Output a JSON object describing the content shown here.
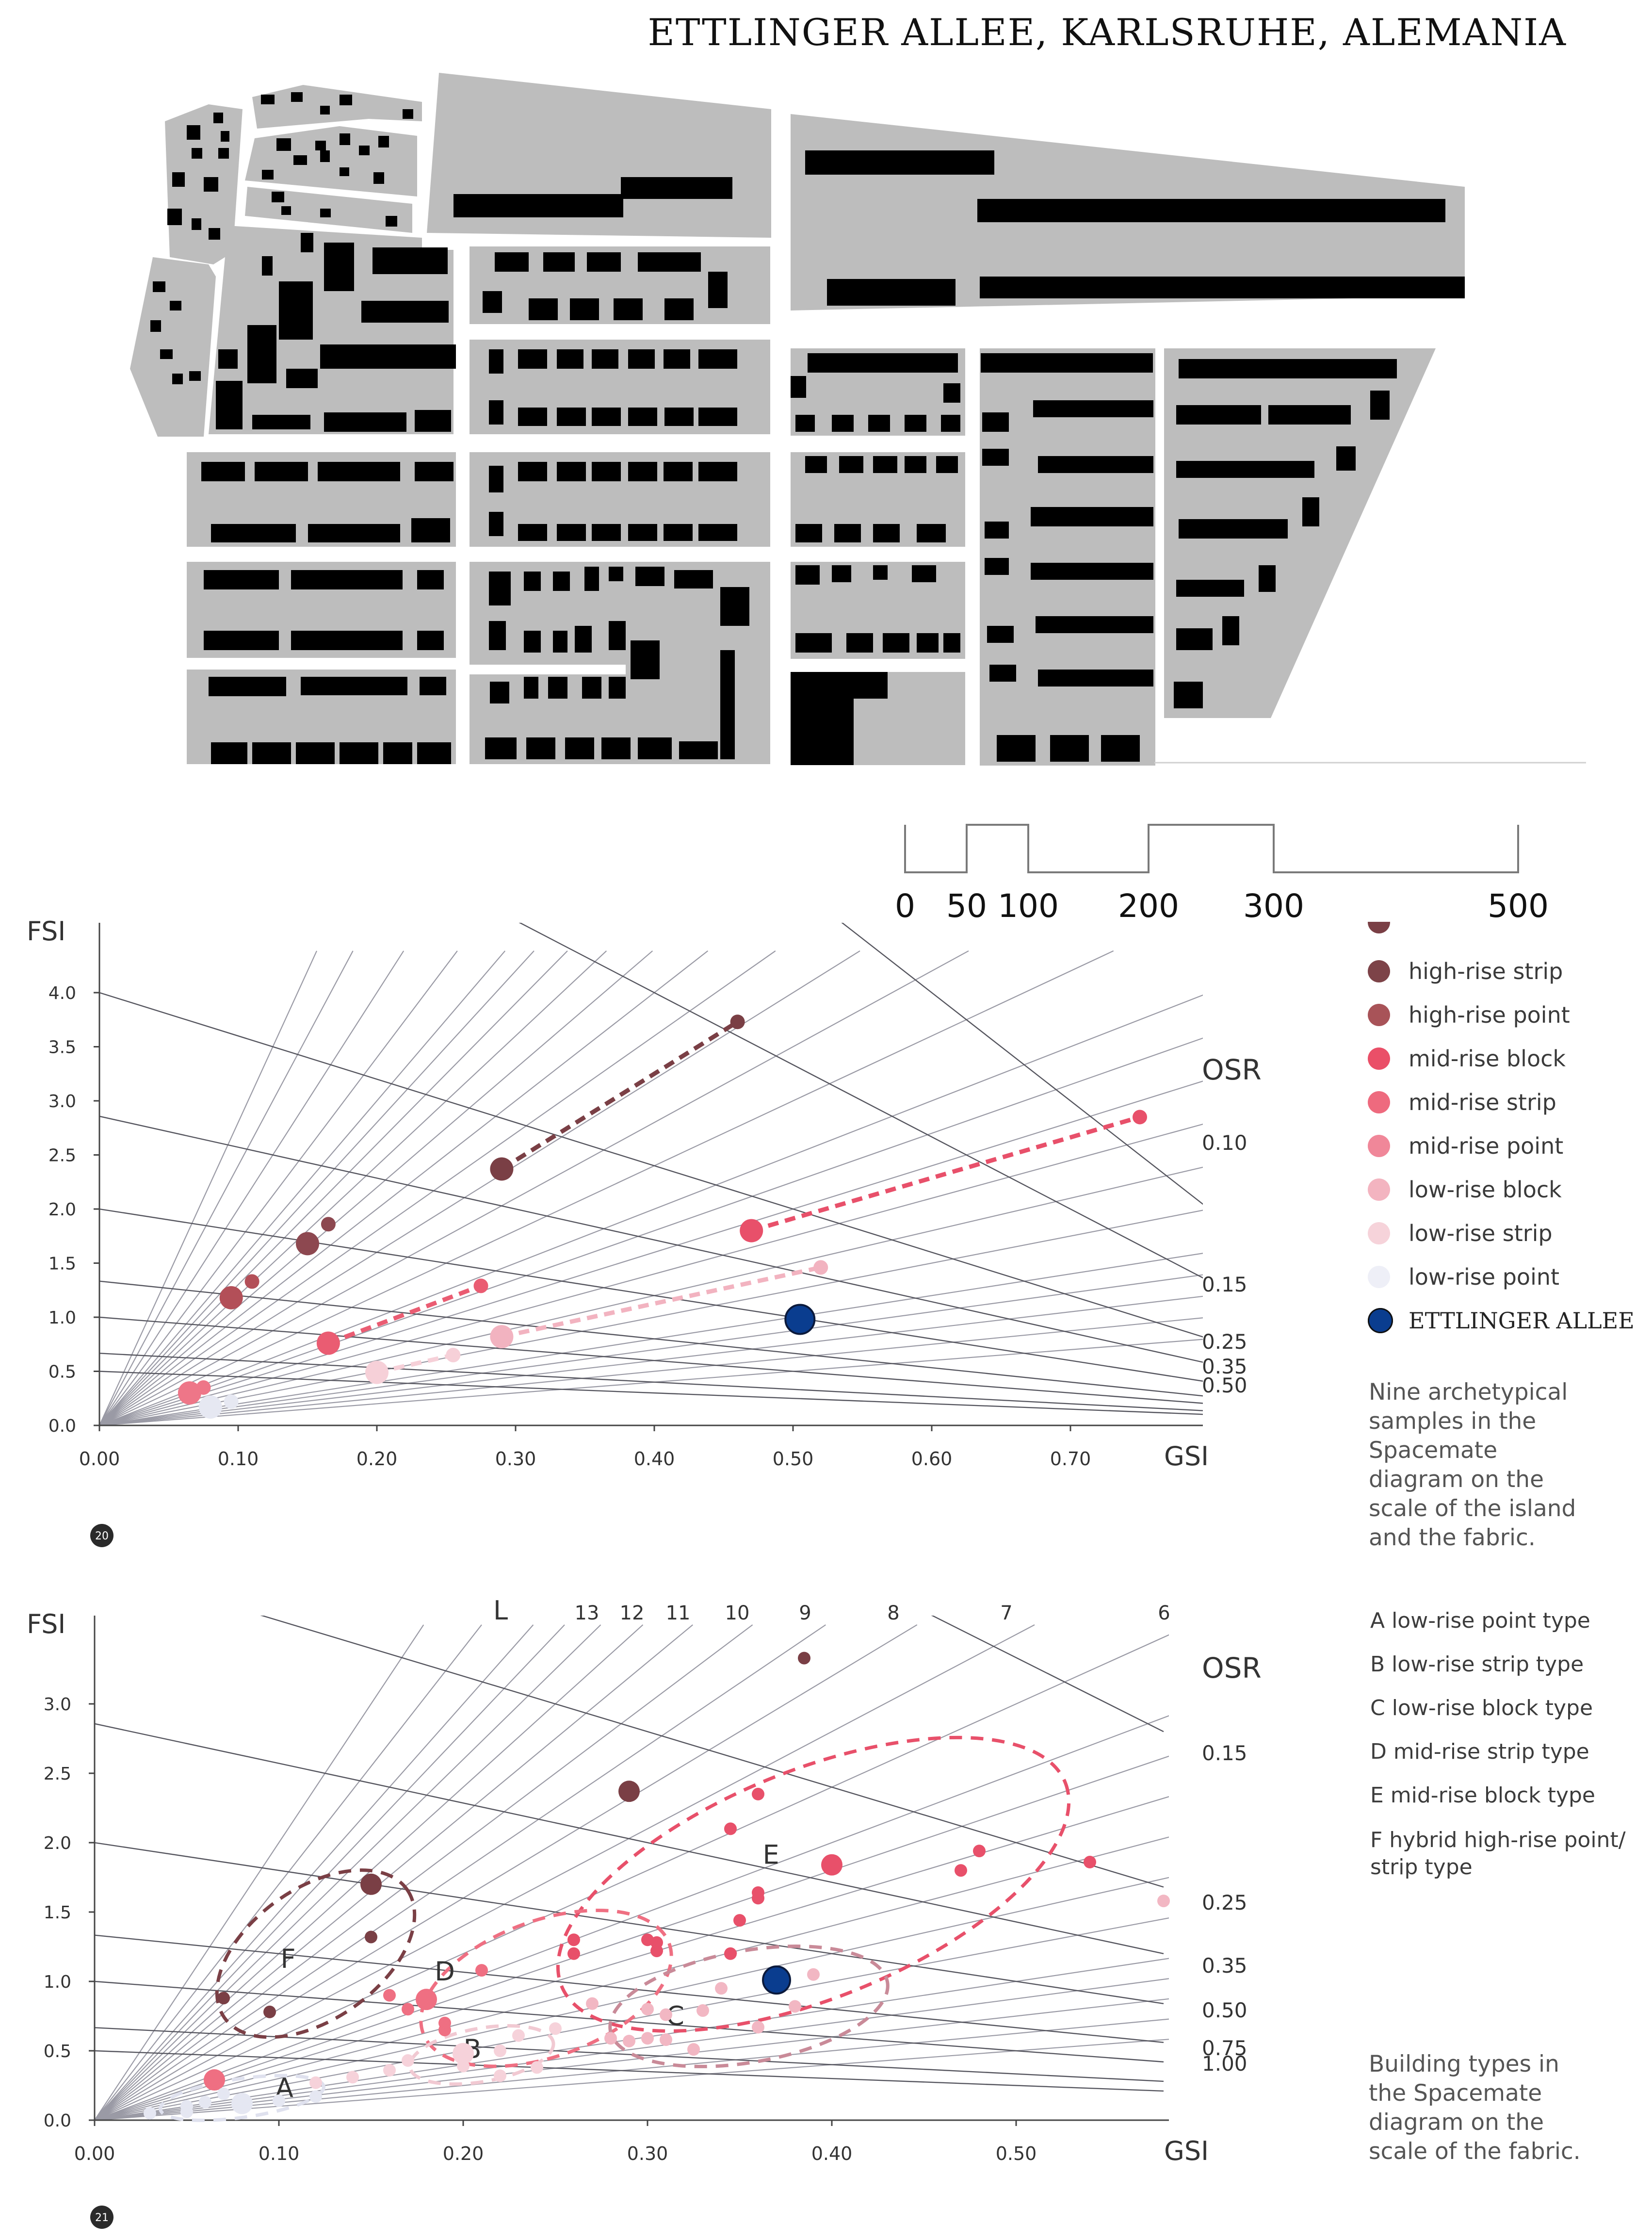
{
  "page": {
    "title": "ETTLINGER ALLEE, KARLSRUHE, ALEMANIA",
    "colors": {
      "block": "#bdbdbd",
      "building": "#000000",
      "highlight": "#0a3d8f",
      "dark": "#7a3f45",
      "mid": "#e85a70",
      "low": "#f2bfc8",
      "lowest": "#eceef6"
    }
  },
  "scale_bar": {
    "labels": [
      "0",
      "50",
      "100",
      "200",
      "300",
      "500"
    ]
  },
  "legend": {
    "items": [
      {
        "label": "high-rise strip",
        "color": "#7d4348"
      },
      {
        "label": "high-rise point",
        "color": "#a85358"
      },
      {
        "label": "mid-rise block",
        "color": "#ea4f68"
      },
      {
        "label": "mid-rise strip",
        "color": "#ee6a7e"
      },
      {
        "label": "mid-rise point",
        "color": "#f08799"
      },
      {
        "label": "low-rise block",
        "color": "#f3b4c0"
      },
      {
        "label": "low-rise strip",
        "color": "#f6d3da"
      },
      {
        "label": "low-rise point",
        "color": "#eeeff7"
      },
      {
        "label": "ETTLINGER ALLEE",
        "color": "#0a3d8f"
      }
    ],
    "caption": "Nine archetypical samples in the Spacemate diagram on the scale of the island and the fabric."
  },
  "types_legend": {
    "items": [
      "A  low-rise point type",
      "B  low-rise strip type",
      "C  low-rise block type",
      "D  mid-rise strip type",
      "E  mid-rise block type",
      "F  hybrid high-rise point/strip type"
    ],
    "caption": "Building types in the Spacemate diagram on the scale of the fabric."
  },
  "chart_data": [
    {
      "type": "scatter",
      "title": "",
      "xlabel": "GSI",
      "ylabel": "FSI",
      "xlim": [
        0,
        0.8
      ],
      "ylim": [
        0,
        4.3
      ],
      "xticks": [
        "0.00",
        "0.10",
        "0.20",
        "0.30",
        "0.40",
        "0.50",
        "0.60",
        "0.70"
      ],
      "yticks": [
        "0.0",
        "0.5",
        "1.0",
        "1.5",
        "2.0",
        "2.5",
        "3.0",
        "3.5",
        "4.0"
      ],
      "osr_label": "OSR",
      "osr_values": [
        "0.10",
        "0.15",
        "0.25",
        "0.35",
        "0.50"
      ],
      "badge": "20",
      "series": [
        {
          "points": [
            [
              0.29,
              2.37
            ],
            [
              0.46,
              3.73
            ]
          ],
          "sizes": [
            1,
            0
          ],
          "color": "#7a3f45",
          "dashed": true
        },
        {
          "points": [
            [
              0.15,
              1.68
            ],
            [
              0.165,
              1.86
            ]
          ],
          "sizes": [
            1,
            0
          ],
          "color": "#8d4850"
        },
        {
          "points": [
            [
              0.095,
              1.18
            ],
            [
              0.11,
              1.33
            ]
          ],
          "sizes": [
            1,
            0
          ],
          "color": "#b34f58"
        },
        {
          "points": [
            [
              0.47,
              1.8
            ],
            [
              0.75,
              2.85
            ]
          ],
          "sizes": [
            1,
            0
          ],
          "color": "#e8506a",
          "dashed": true
        },
        {
          "points": [
            [
              0.165,
              0.76
            ],
            [
              0.275,
              1.29
            ]
          ],
          "sizes": [
            1,
            0
          ],
          "color": "#ea5c72",
          "dashed": true
        },
        {
          "points": [
            [
              0.065,
              0.3
            ],
            [
              0.075,
              0.35
            ]
          ],
          "sizes": [
            1,
            0
          ],
          "color": "#ee7688"
        },
        {
          "points": [
            [
              0.29,
              0.82
            ],
            [
              0.52,
              1.46
            ]
          ],
          "sizes": [
            1,
            0
          ],
          "color": "#f2b3c0",
          "dashed": true
        },
        {
          "points": [
            [
              0.2,
              0.49
            ],
            [
              0.255,
              0.65
            ]
          ],
          "sizes": [
            1,
            0
          ],
          "color": "#f6d0d8",
          "dashed": true
        },
        {
          "points": [
            [
              0.08,
              0.17
            ],
            [
              0.095,
              0.22
            ]
          ],
          "sizes": [
            1,
            0
          ],
          "color": "#e6e8f2"
        }
      ],
      "highlight": {
        "name": "ETTLINGER ALLEE",
        "x": 0.505,
        "y": 0.98,
        "color": "#0a3d8f"
      }
    },
    {
      "type": "scatter",
      "title": "",
      "xlabel": "GSI",
      "ylabel": "FSI",
      "xlim": [
        0,
        0.58
      ],
      "ylim": [
        0,
        3.5
      ],
      "xticks": [
        "0.00",
        "0.10",
        "0.20",
        "0.30",
        "0.40",
        "0.50"
      ],
      "yticks": [
        "0.0",
        "0.5",
        "1.0",
        "1.5",
        "2.0",
        "2.5",
        "3.0"
      ],
      "osr_label": "OSR",
      "osr_values": [
        "0.15",
        "0.25",
        "0.35",
        "0.50",
        "0.75",
        "1.00"
      ],
      "floor_label": "L",
      "floor_values": [
        "13",
        "12",
        "11",
        "10",
        "9",
        "8",
        "7",
        "6"
      ],
      "badge": "21",
      "clusters": [
        {
          "label": "A",
          "label_x": 0.103,
          "label_y": 0.23
        },
        {
          "label": "B",
          "label_x": 0.205,
          "label_y": 0.51
        },
        {
          "label": "C",
          "label_x": 0.315,
          "label_y": 0.75
        },
        {
          "label": "D",
          "label_x": 0.19,
          "label_y": 1.07
        },
        {
          "label": "E",
          "label_x": 0.367,
          "label_y": 1.91
        },
        {
          "label": "F",
          "label_x": 0.105,
          "label_y": 1.16
        }
      ],
      "series": [
        {
          "points": [
            [
              0.385,
              3.33
            ],
            [
              0.29,
              2.37
            ],
            [
              0.15,
              1.7
            ],
            [
              0.15,
              1.32
            ],
            [
              0.07,
              0.88
            ],
            [
              0.095,
              0.78
            ]
          ],
          "sizes": [
            0,
            1,
            1,
            0,
            0,
            0
          ],
          "color": "#7a3f45"
        },
        {
          "points": [
            [
              0.345,
              2.1
            ],
            [
              0.36,
              2.35
            ],
            [
              0.4,
              1.84
            ],
            [
              0.35,
              1.44
            ],
            [
              0.36,
              1.64
            ],
            [
              0.36,
              1.6
            ],
            [
              0.345,
              1.2
            ],
            [
              0.3,
              1.3
            ],
            [
              0.305,
              1.28
            ],
            [
              0.305,
              1.22
            ],
            [
              0.26,
              1.3
            ],
            [
              0.26,
              1.2
            ],
            [
              0.48,
              1.94
            ],
            [
              0.47,
              1.8
            ],
            [
              0.54,
              1.86
            ]
          ],
          "sizes": [
            0,
            0,
            1,
            0,
            0,
            0,
            0,
            0,
            0,
            0,
            0,
            0,
            0,
            0,
            0
          ],
          "color": "#e8506a"
        },
        {
          "points": [
            [
              0.17,
              0.8
            ],
            [
              0.16,
              0.9
            ],
            [
              0.18,
              0.87
            ],
            [
              0.21,
              1.08
            ],
            [
              0.19,
              0.7
            ],
            [
              0.19,
              0.65
            ],
            [
              0.065,
              0.29
            ]
          ],
          "sizes": [
            0,
            0,
            1,
            0,
            0,
            0,
            1
          ],
          "color": "#ef6f82"
        },
        {
          "points": [
            [
              0.58,
              1.58
            ],
            [
              0.39,
              1.05
            ],
            [
              0.34,
              0.95
            ],
            [
              0.38,
              0.82
            ],
            [
              0.33,
              0.79
            ],
            [
              0.31,
              0.76
            ],
            [
              0.3,
              0.59
            ],
            [
              0.29,
              0.57
            ],
            [
              0.31,
              0.58
            ],
            [
              0.28,
              0.59
            ],
            [
              0.27,
              0.84
            ],
            [
              0.36,
              0.67
            ],
            [
              0.325,
              0.51
            ],
            [
              0.3,
              0.8
            ]
          ],
          "sizes": [
            0,
            0,
            0,
            0,
            0,
            0,
            0,
            0,
            0,
            0,
            0,
            0,
            0,
            0
          ],
          "color": "#f2b7c3"
        },
        {
          "points": [
            [
              0.2,
              0.48
            ],
            [
              0.22,
              0.5
            ],
            [
              0.23,
              0.61
            ],
            [
              0.25,
              0.66
            ],
            [
              0.2,
              0.39
            ],
            [
              0.24,
              0.38
            ],
            [
              0.17,
              0.43
            ],
            [
              0.16,
              0.36
            ],
            [
              0.14,
              0.31
            ],
            [
              0.12,
              0.27
            ],
            [
              0.22,
              0.32
            ]
          ],
          "sizes": [
            1,
            0,
            0,
            0,
            0,
            0,
            0,
            0,
            0,
            0,
            0
          ],
          "color": "#f6d2da"
        },
        {
          "points": [
            [
              0.05,
              0.1
            ],
            [
              0.06,
              0.13
            ],
            [
              0.08,
              0.12
            ],
            [
              0.07,
              0.19
            ],
            [
              0.1,
              0.14
            ],
            [
              0.12,
              0.17
            ],
            [
              0.05,
              0.06
            ],
            [
              0.03,
              0.05
            ]
          ],
          "sizes": [
            0,
            0,
            1,
            0,
            0,
            0,
            0,
            0
          ],
          "color": "#e5e7f2"
        }
      ],
      "highlight": {
        "name": "ETTLINGER ALLEE",
        "x": 0.37,
        "y": 1.01,
        "color": "#0a3d8f"
      }
    }
  ]
}
